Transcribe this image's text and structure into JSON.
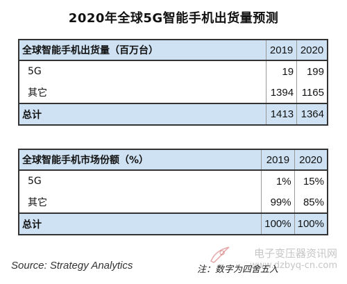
{
  "title": "2020年全球5G智能手机出货量预测",
  "table1": {
    "header": "全球智能手机出货量（百万台）",
    "years": [
      "2019",
      "2020"
    ],
    "rows": [
      {
        "label": "5G",
        "v2019": "19",
        "v2020": "199"
      },
      {
        "label": "其它",
        "v2019": "1394",
        "v2020": "1165"
      }
    ],
    "total": {
      "label": "总计",
      "v2019": "1413",
      "v2020": "1364"
    }
  },
  "table2": {
    "header": "全球智能手机市场份额（%）",
    "years": [
      "2019",
      "2020"
    ],
    "rows": [
      {
        "label": "5G",
        "v2019": "1%",
        "v2020": "15%"
      },
      {
        "label": "其它",
        "v2019": "99%",
        "v2020": "85%"
      }
    ],
    "total": {
      "label": "总计",
      "v2019": "100%",
      "v2020": "100%"
    }
  },
  "source": "Source: Strategy Analytics",
  "note": "注：数字为四舍五入",
  "watermark": {
    "name": "电子变压器资讯网",
    "url": "www.dzbyq-cn.com"
  },
  "colors": {
    "header_bg": "#cfe2f3",
    "border": "#333333"
  }
}
